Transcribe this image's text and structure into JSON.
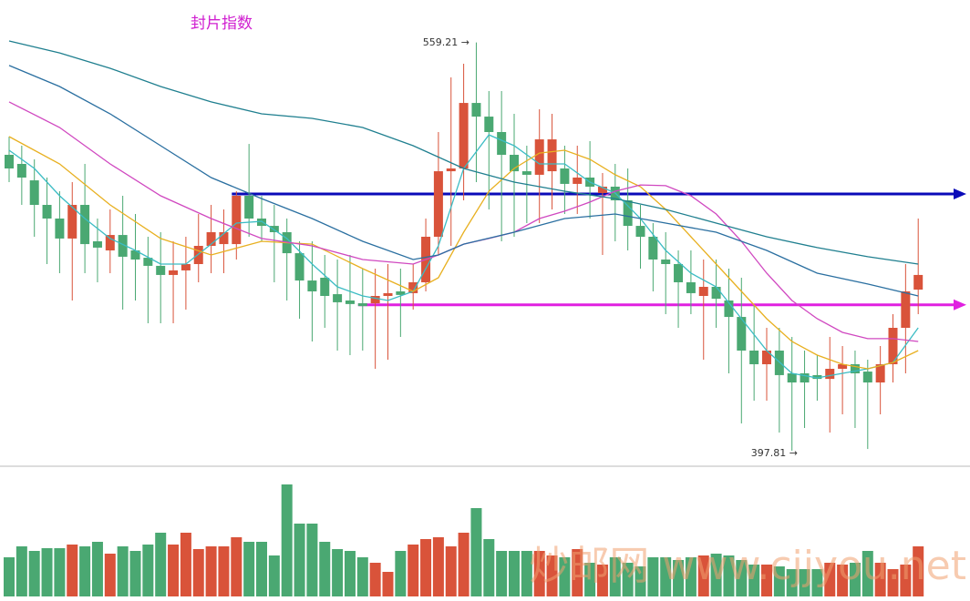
{
  "chart_data": {
    "type": "candlestick",
    "title": "封片指数",
    "annotations": [
      "559.21 →",
      "397.81 →"
    ],
    "watermark": "炒邮网 www.cjjyou.net",
    "up_color": "#d9533a",
    "down_color": "#4aa872",
    "ylim": [
      392.4,
      576
    ],
    "candles": [
      [
        514.8,
        522,
        504,
        509.4
      ],
      [
        511.2,
        518.4,
        495,
        505.8
      ],
      [
        504.7,
        513,
        482.4,
        495
      ],
      [
        495,
        505.8,
        471.6,
        489.6
      ],
      [
        489.6,
        500.4,
        468,
        481.7
      ],
      [
        481.7,
        504,
        457.2,
        495
      ],
      [
        495,
        511.2,
        468,
        479.5
      ],
      [
        480.6,
        489.6,
        464.4,
        478.1
      ],
      [
        477,
        493.2,
        468,
        483.1
      ],
      [
        483.1,
        498.6,
        453.6,
        474.5
      ],
      [
        477,
        491.4,
        457.2,
        473.4
      ],
      [
        474.1,
        482.4,
        448.2,
        470.9
      ],
      [
        470.9,
        484.2,
        448.2,
        467.3
      ],
      [
        467.3,
        480.6,
        448.2,
        469.1
      ],
      [
        469.1,
        482.4,
        453.6,
        471.6
      ],
      [
        471.6,
        491.4,
        464.4,
        478.8
      ],
      [
        478.8,
        495,
        468,
        484.2
      ],
      [
        479.5,
        493.2,
        468,
        484.2
      ],
      [
        479.5,
        500.4,
        473.4,
        498.6
      ],
      [
        498.6,
        519.1,
        482.4,
        489.6
      ],
      [
        489.6,
        498.6,
        480.6,
        486.7
      ],
      [
        486.7,
        495,
        464.4,
        484.2
      ],
      [
        484.2,
        489.6,
        457.2,
        475.9
      ],
      [
        475.9,
        480.6,
        450,
        465.1
      ],
      [
        465.1,
        480.6,
        441,
        460.8
      ],
      [
        466.2,
        475.2,
        446.4,
        459
      ],
      [
        459.7,
        473.4,
        437.4,
        456.5
      ],
      [
        457.2,
        475.2,
        435.6,
        455.8
      ],
      [
        456.1,
        469.8,
        437.4,
        455
      ],
      [
        456.1,
        469.8,
        430.2,
        459
      ],
      [
        459,
        471.6,
        433.8,
        460.1
      ],
      [
        460.8,
        469.8,
        442.8,
        459.4
      ],
      [
        460.1,
        471.6,
        453.6,
        464.4
      ],
      [
        464.4,
        489.6,
        460.8,
        482.4
      ],
      [
        482.4,
        523.8,
        475.2,
        508.3
      ],
      [
        508.3,
        545.4,
        478.8,
        509.4
      ],
      [
        509.4,
        550.8,
        496.8,
        535.3
      ],
      [
        535.3,
        559.21,
        504,
        529.9
      ],
      [
        529.9,
        540,
        493.2,
        523.8
      ],
      [
        523.8,
        540,
        480.6,
        514.8
      ],
      [
        514.8,
        531,
        482.4,
        508.3
      ],
      [
        508.3,
        518.4,
        487.8,
        506.9
      ],
      [
        506.9,
        532.8,
        487.8,
        520.9
      ],
      [
        508.3,
        531,
        493.2,
        520.9
      ],
      [
        509.4,
        518.4,
        491.4,
        503.3
      ],
      [
        503.3,
        518.4,
        491.4,
        505.8
      ],
      [
        505.8,
        520.2,
        489.6,
        502.2
      ],
      [
        499.7,
        507.6,
        475.2,
        502.2
      ],
      [
        502.2,
        511.2,
        480.6,
        496.8
      ],
      [
        496.8,
        509.4,
        477,
        486.7
      ],
      [
        486.7,
        495,
        469.8,
        482.4
      ],
      [
        482.4,
        487.8,
        460.8,
        473.4
      ],
      [
        473.4,
        484.2,
        451.8,
        471.6
      ],
      [
        471.6,
        477,
        446.4,
        464.4
      ],
      [
        464.4,
        477,
        451.8,
        460.1
      ],
      [
        459,
        473.4,
        433.8,
        462.6
      ],
      [
        462.6,
        473.4,
        446.4,
        457.9
      ],
      [
        457.2,
        469.8,
        428.4,
        450.7
      ],
      [
        450.7,
        466.2,
        408.6,
        437.4
      ],
      [
        437.4,
        455.4,
        417.6,
        432
      ],
      [
        432,
        446.4,
        417.6,
        437.4
      ],
      [
        437.4,
        446.4,
        405,
        427.7
      ],
      [
        428.4,
        442.8,
        397.81,
        424.8
      ],
      [
        428.4,
        437.4,
        406.8,
        424.8
      ],
      [
        427.7,
        435.6,
        417.6,
        426.2
      ],
      [
        426.2,
        442.8,
        405,
        430.2
      ],
      [
        430.2,
        439.2,
        412.2,
        432
      ],
      [
        432,
        437.4,
        406.8,
        428.4
      ],
      [
        429.1,
        433.8,
        398.5,
        424.8
      ],
      [
        424.8,
        439.2,
        412.2,
        432
      ],
      [
        432,
        451.8,
        424.8,
        446.4
      ],
      [
        446.4,
        471.6,
        428.4,
        460.8
      ],
      [
        461.5,
        489.6,
        451.8,
        467.3
      ]
    ],
    "series": [
      {
        "color": "#3bbcc4",
        "x": [
          0,
          2,
          4,
          6,
          8,
          10,
          12,
          14,
          16,
          18,
          20,
          22,
          24,
          26,
          28,
          30,
          32,
          34,
          36,
          38,
          40,
          42,
          44,
          46,
          48,
          50,
          52,
          54,
          56,
          58,
          60,
          62,
          64,
          66,
          68,
          70,
          72
        ],
        "values": [
          516.6,
          509.4,
          498.6,
          489.6,
          481.7,
          477,
          471.6,
          471.6,
          479.5,
          487.8,
          488.5,
          481.7,
          471.6,
          462.6,
          459,
          457.2,
          460.8,
          478.8,
          509.4,
          522.7,
          518.4,
          511.2,
          511.2,
          504,
          499.7,
          489.6,
          477,
          468,
          462.6,
          450,
          437.4,
          428.4,
          426.6,
          428.4,
          430.2,
          432.7,
          446.4
        ]
      },
      {
        "color": "#e8b020",
        "x": [
          0,
          4,
          8,
          12,
          16,
          20,
          24,
          28,
          32,
          34,
          36,
          38,
          40,
          42,
          44,
          46,
          48,
          50,
          52,
          54,
          56,
          58,
          60,
          62,
          64,
          66,
          68,
          70,
          72
        ],
        "values": [
          522,
          511.2,
          495,
          481.7,
          475.2,
          480.6,
          479.5,
          469.8,
          460.8,
          466.2,
          484.2,
          500.4,
          509.4,
          515.5,
          516.6,
          513,
          506.9,
          502.2,
          493.2,
          482.4,
          471.6,
          460.8,
          450,
          441,
          435.6,
          432,
          430.2,
          432.7,
          437.4
        ]
      },
      {
        "color": "#d048c0",
        "x": [
          0,
          4,
          8,
          12,
          16,
          20,
          24,
          28,
          32,
          34,
          36,
          38,
          40,
          42,
          44,
          46,
          48,
          50,
          52,
          54,
          56,
          58,
          60,
          62,
          64,
          66,
          68,
          70,
          72
        ],
        "values": [
          535.7,
          525.6,
          511.2,
          498.6,
          489.6,
          481.7,
          478.8,
          473.4,
          471.6,
          475.2,
          479.5,
          481.7,
          484.2,
          489.6,
          492.5,
          496.1,
          500.4,
          502.9,
          502.6,
          498.6,
          491.4,
          480.6,
          468,
          457.2,
          450,
          444.6,
          442.1,
          442.1,
          441
        ]
      },
      {
        "color": "#1f7f8f",
        "x": [
          0,
          4,
          8,
          12,
          16,
          20,
          24,
          28,
          32,
          36,
          40,
          44,
          48,
          52,
          56,
          60,
          64,
          68,
          72
        ],
        "values": [
          559.8,
          555.1,
          549,
          541.8,
          535.7,
          531,
          529.2,
          525.6,
          518.4,
          509.4,
          504,
          500.4,
          497.5,
          493.2,
          487.8,
          482.4,
          478.1,
          474.5,
          471.6
        ]
      },
      {
        "color": "#2a6fa0",
        "x": [
          0,
          4,
          8,
          12,
          16,
          20,
          24,
          28,
          32,
          34,
          36,
          40,
          44,
          48,
          52,
          56,
          60,
          64,
          68,
          72
        ],
        "values": [
          550.1,
          541.8,
          531,
          518.4,
          505.8,
          497.5,
          489.6,
          480.6,
          473.4,
          475.2,
          479.5,
          484.2,
          489.6,
          491.4,
          487.8,
          484.2,
          477,
          468,
          463.7,
          459
        ]
      }
    ],
    "hlines": [
      {
        "value": 499.3,
        "color": "#0a0ab8",
        "from": 18
      },
      {
        "value": 455.5,
        "color": "#e020e0",
        "from": 28
      }
    ],
    "volume": [
      43,
      55,
      50,
      53,
      53,
      57,
      55,
      60,
      47,
      55,
      50,
      57,
      70,
      57,
      70,
      52,
      55,
      55,
      65,
      60,
      60,
      45,
      123,
      80,
      80,
      60,
      52,
      50,
      43,
      37,
      27,
      50,
      57,
      63,
      65,
      55,
      70,
      97,
      63,
      50,
      50,
      50,
      50,
      45,
      43,
      52,
      37,
      35,
      43,
      37,
      33,
      43,
      43,
      40,
      43,
      45,
      47,
      45,
      40,
      35,
      35,
      33,
      30,
      30,
      30,
      37,
      35,
      37,
      50,
      37,
      30,
      35,
      55
    ],
    "volume_ylim": [
      0,
      140
    ]
  }
}
